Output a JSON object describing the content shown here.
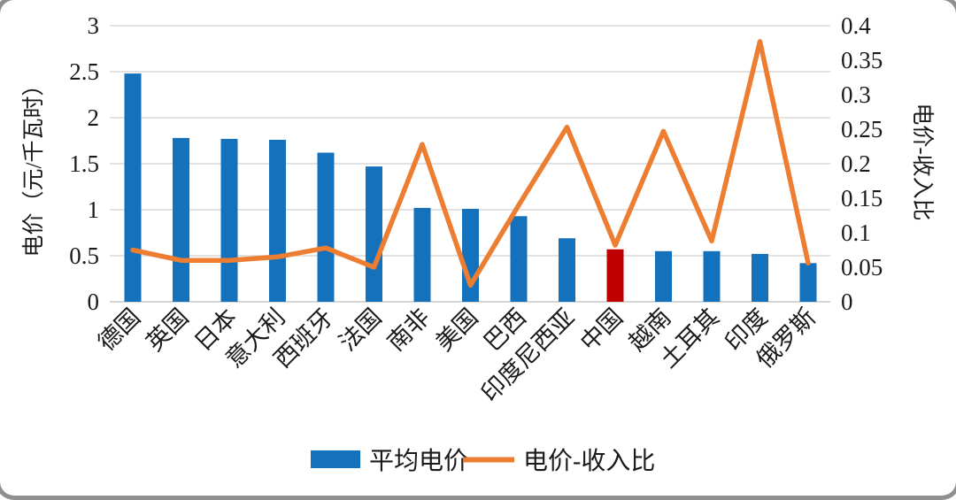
{
  "chart_data": {
    "type": "bar+line",
    "title": "",
    "categories": [
      "德国",
      "英国",
      "日本",
      "意大利",
      "西班牙",
      "法国",
      "南非",
      "美国",
      "巴西",
      "印度尼西亚",
      "中国",
      "越南",
      "土耳其",
      "印度",
      "俄罗斯"
    ],
    "series": [
      {
        "name": "平均电价",
        "type": "bar",
        "axis": "left",
        "color": "#1472BC",
        "values": [
          2.48,
          1.78,
          1.77,
          1.76,
          1.62,
          1.47,
          1.02,
          1.01,
          0.93,
          0.69,
          0.57,
          0.55,
          0.55,
          0.52,
          0.42
        ]
      },
      {
        "name": "电价-收入比",
        "type": "line",
        "axis": "right",
        "color": "#ED7D31",
        "values": [
          0.075,
          0.06,
          0.06,
          0.065,
          0.078,
          0.05,
          0.228,
          0.024,
          0.14,
          0.253,
          0.082,
          0.247,
          0.088,
          0.377,
          0.056
        ]
      }
    ],
    "highlight_bar": {
      "category": "中国",
      "index": 10,
      "color": "#C00000"
    },
    "left_axis": {
      "title": "电价（元/千瓦时）",
      "min": 0,
      "max": 3,
      "tick_labels": [
        "0",
        "0.5",
        "1",
        "1.5",
        "2",
        "2.5",
        "3"
      ]
    },
    "right_axis": {
      "title": "电价-收入比",
      "min": 0,
      "max": 0.4,
      "tick_labels": [
        "0",
        "0.05",
        "0.1",
        "0.15",
        "0.2",
        "0.25",
        "0.3",
        "0.35",
        "0.4"
      ]
    },
    "grid": "horizontal-left-ticks",
    "legend": {
      "position": "bottom",
      "items": [
        {
          "label": "平均电价",
          "swatch": "bar",
          "color": "#1472BC"
        },
        {
          "label": "电价-收入比",
          "swatch": "line",
          "color": "#ED7D31"
        }
      ]
    },
    "colors": {
      "grid": "#D9D9D9",
      "baseline": "#C9C9C9",
      "text": "#1a1a1a"
    }
  }
}
